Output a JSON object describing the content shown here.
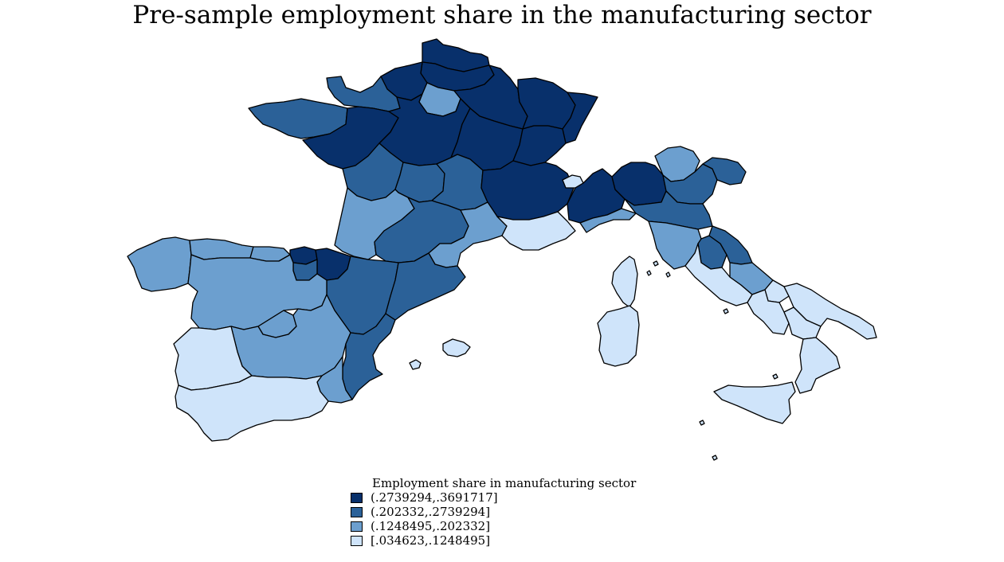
{
  "title": "Pre-sample employment share in the manufacturing sector",
  "legend": {
    "title": "Employment share in manufacturing sector",
    "items": [
      {
        "label": "(.2739294,.3691717]",
        "color": "#08306b"
      },
      {
        "label": "(.202332,.2739294]",
        "color": "#2b6198"
      },
      {
        "label": "(.1248495,.202332]",
        "color": "#6c9fcf"
      },
      {
        "label": "[.034623,.1248495]",
        "color": "#cfe4fa"
      }
    ]
  },
  "map_data": {
    "type": "choropleth",
    "countries": [
      "France",
      "Spain",
      "Italy"
    ],
    "regions": [
      {
        "id": "fr-nord",
        "country": "France",
        "class": 0
      },
      {
        "id": "fr-picardie",
        "country": "France",
        "class": 0
      },
      {
        "id": "fr-haute-normandie",
        "country": "France",
        "class": 0
      },
      {
        "id": "fr-basse-normandie",
        "country": "France",
        "class": 1
      },
      {
        "id": "fr-bretagne",
        "country": "France",
        "class": 1
      },
      {
        "id": "fr-ile-de-france",
        "country": "France",
        "class": 2
      },
      {
        "id": "fr-champagne-ardenne",
        "country": "France",
        "class": 0
      },
      {
        "id": "fr-lorraine",
        "country": "France",
        "class": 0
      },
      {
        "id": "fr-alsace",
        "country": "France",
        "class": 0
      },
      {
        "id": "fr-pays-de-la-loire",
        "country": "France",
        "class": 0
      },
      {
        "id": "fr-centre",
        "country": "France",
        "class": 0
      },
      {
        "id": "fr-bourgogne",
        "country": "France",
        "class": 0
      },
      {
        "id": "fr-franche-comte",
        "country": "France",
        "class": 0
      },
      {
        "id": "fr-poitou-charentes",
        "country": "France",
        "class": 1
      },
      {
        "id": "fr-limousin",
        "country": "France",
        "class": 1
      },
      {
        "id": "fr-auvergne",
        "country": "France",
        "class": 1
      },
      {
        "id": "fr-rhone-alpes",
        "country": "France",
        "class": 0
      },
      {
        "id": "fr-aquitaine",
        "country": "France",
        "class": 2
      },
      {
        "id": "fr-midi-pyrenees",
        "country": "France",
        "class": 1
      },
      {
        "id": "fr-languedoc-roussillon",
        "country": "France",
        "class": 2
      },
      {
        "id": "fr-paca",
        "country": "France",
        "class": 3
      },
      {
        "id": "fr-corse",
        "country": "France",
        "class": 3
      },
      {
        "id": "es-galicia",
        "country": "Spain",
        "class": 2
      },
      {
        "id": "es-asturias",
        "country": "Spain",
        "class": 2
      },
      {
        "id": "es-cantabria",
        "country": "Spain",
        "class": 2
      },
      {
        "id": "es-pais-vasco",
        "country": "Spain",
        "class": 0
      },
      {
        "id": "es-navarra",
        "country": "Spain",
        "class": 0
      },
      {
        "id": "es-la-rioja",
        "country": "Spain",
        "class": 1
      },
      {
        "id": "es-aragon",
        "country": "Spain",
        "class": 1
      },
      {
        "id": "es-cataluna",
        "country": "Spain",
        "class": 1
      },
      {
        "id": "es-castilla-y-leon",
        "country": "Spain",
        "class": 2
      },
      {
        "id": "es-madrid",
        "country": "Spain",
        "class": 2
      },
      {
        "id": "es-castilla-la-mancha",
        "country": "Spain",
        "class": 2
      },
      {
        "id": "es-comunidad-valenciana",
        "country": "Spain",
        "class": 1
      },
      {
        "id": "es-extremadura",
        "country": "Spain",
        "class": 3
      },
      {
        "id": "es-andalucia",
        "country": "Spain",
        "class": 3
      },
      {
        "id": "es-murcia",
        "country": "Spain",
        "class": 2
      },
      {
        "id": "es-illes-balears",
        "country": "Spain",
        "class": 3
      },
      {
        "id": "it-valle-d-aosta",
        "country": "Italy",
        "class": 3
      },
      {
        "id": "it-piemonte",
        "country": "Italy",
        "class": 0
      },
      {
        "id": "it-lombardia",
        "country": "Italy",
        "class": 0
      },
      {
        "id": "it-trentino-alto-adige",
        "country": "Italy",
        "class": 2
      },
      {
        "id": "it-veneto",
        "country": "Italy",
        "class": 1
      },
      {
        "id": "it-friuli-venezia-giulia",
        "country": "Italy",
        "class": 1
      },
      {
        "id": "it-liguria",
        "country": "Italy",
        "class": 2
      },
      {
        "id": "it-emilia-romagna",
        "country": "Italy",
        "class": 1
      },
      {
        "id": "it-toscana",
        "country": "Italy",
        "class": 2
      },
      {
        "id": "it-umbria",
        "country": "Italy",
        "class": 1
      },
      {
        "id": "it-marche",
        "country": "Italy",
        "class": 1
      },
      {
        "id": "it-lazio",
        "country": "Italy",
        "class": 3
      },
      {
        "id": "it-abruzzo",
        "country": "Italy",
        "class": 2
      },
      {
        "id": "it-molise",
        "country": "Italy",
        "class": 3
      },
      {
        "id": "it-campania",
        "country": "Italy",
        "class": 3
      },
      {
        "id": "it-puglia",
        "country": "Italy",
        "class": 3
      },
      {
        "id": "it-basilicata",
        "country": "Italy",
        "class": 3
      },
      {
        "id": "it-calabria",
        "country": "Italy",
        "class": 3
      },
      {
        "id": "it-sicilia",
        "country": "Italy",
        "class": 3
      },
      {
        "id": "it-sardegna",
        "country": "Italy",
        "class": 3
      }
    ]
  }
}
